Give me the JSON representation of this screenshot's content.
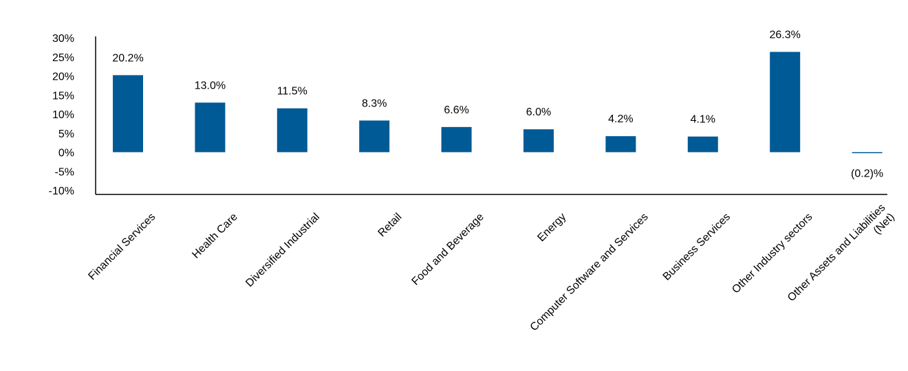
{
  "chart_data": {
    "type": "bar",
    "title": "",
    "xlabel": "",
    "ylabel": "",
    "categories": [
      [
        "Financial Services"
      ],
      [
        "Health Care"
      ],
      [
        "Diversified Industrial"
      ],
      [
        "Retail"
      ],
      [
        "Food and Beverage"
      ],
      [
        "Energy"
      ],
      [
        "Computer Software and Services"
      ],
      [
        "Business Services"
      ],
      [
        "Other Industry sectors"
      ],
      [
        "Other Assets and Liabilities",
        "(Net)"
      ]
    ],
    "values": [
      20.2,
      13.0,
      11.5,
      8.3,
      6.6,
      6.0,
      4.2,
      4.1,
      26.3,
      -0.2
    ],
    "data_labels": [
      "20.2%",
      "13.0%",
      "11.5%",
      "8.3%",
      "6.6%",
      "6.0%",
      "4.2%",
      "4.1%",
      "26.3%",
      "(0.2)%"
    ],
    "ylim": [
      -10,
      30
    ],
    "y_ticks": [
      30,
      25,
      20,
      15,
      10,
      5,
      0,
      -5,
      -10
    ],
    "y_tick_labels": [
      "30%",
      "25%",
      "20%",
      "15%",
      "10%",
      "5%",
      "0%",
      "-5%",
      "-10%"
    ],
    "grid": false,
    "legend": "none",
    "bar_color": "#005A96"
  }
}
